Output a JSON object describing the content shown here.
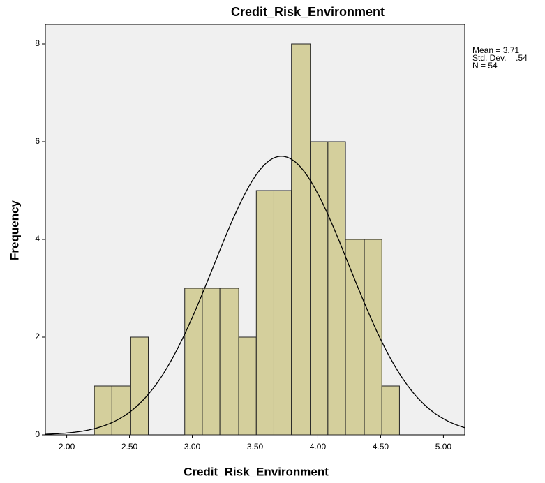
{
  "chart_data": {
    "type": "histogram",
    "title": "Credit_Risk_Environment",
    "x_label": "Credit_Risk_Environment",
    "y_label": "Frequency",
    "bins": [
      2.22,
      2.36,
      2.51,
      2.65,
      2.79,
      2.94,
      3.08,
      3.22,
      3.37,
      3.51,
      3.65,
      3.79,
      3.94,
      4.08,
      4.22,
      4.37,
      4.51,
      4.65
    ],
    "values": [
      1,
      1,
      2,
      0,
      0,
      3,
      3,
      3,
      2,
      5,
      5,
      8,
      6,
      6,
      4,
      4,
      1
    ],
    "color": "#d4cf9c",
    "xlim": [
      1.83,
      5.17
    ],
    "ylim": [
      0,
      8.4
    ],
    "xticks": [
      {
        "value": 2,
        "label": "2.00"
      },
      {
        "value": 2.5,
        "label": "2.50"
      },
      {
        "value": 3,
        "label": "3.00"
      },
      {
        "value": 3.5,
        "label": "3.50"
      },
      {
        "value": 4,
        "label": "4.00"
      },
      {
        "value": 4.5,
        "label": "4.50"
      },
      {
        "value": 5,
        "label": "5.00"
      }
    ],
    "yticks": [
      0,
      2,
      4,
      6,
      8
    ],
    "normal_curve": {
      "mean": 3.71,
      "std_dev": 0.54,
      "n": 54
    },
    "legend_text": [
      "Mean = 3.71",
      "Std. Dev. = .54",
      "N = 54"
    ]
  }
}
